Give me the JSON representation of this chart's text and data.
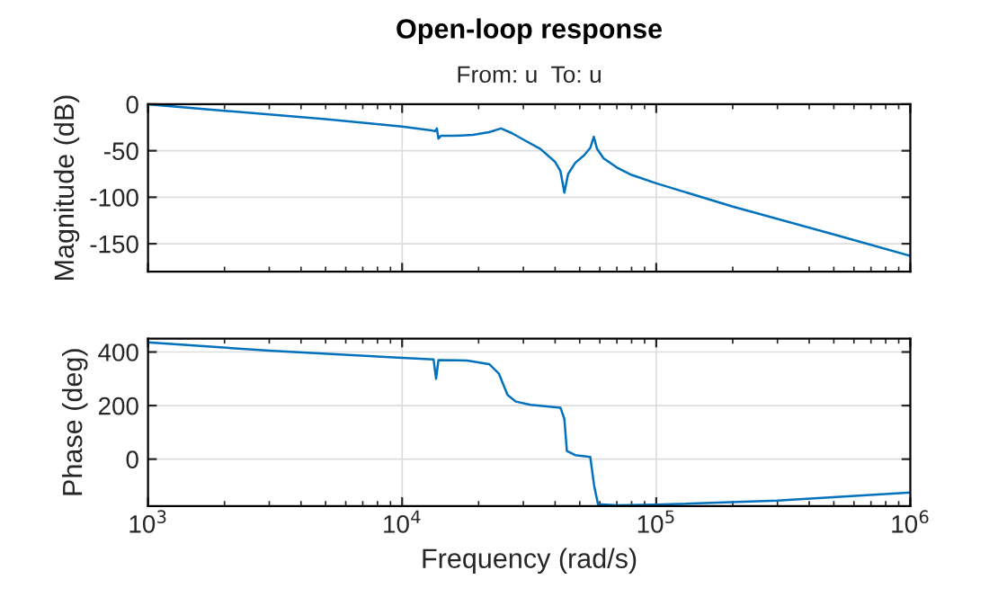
{
  "chart_data": [
    {
      "type": "line",
      "title": "Open-loop response",
      "subtitle": "From: u  To: u",
      "ylabel": "Magnitude (dB)",
      "log": "x",
      "grid": true,
      "tick_labels": "y",
      "legend": false,
      "xlim": [
        1000,
        1000000
      ],
      "xticks": [
        {
          "value": 1000,
          "label": null
        },
        {
          "value": 10000,
          "label": null
        },
        {
          "value": 100000,
          "label": null
        },
        {
          "value": 1000000,
          "label": null
        }
      ],
      "ylim": [
        -180,
        0
      ],
      "yticks": [
        -150,
        -100,
        -50,
        0
      ],
      "series": [
        {
          "color": "#0072bd",
          "x": [
            1000,
            2000,
            5000,
            10000,
            13000,
            13500,
            13700,
            13900,
            14200,
            16000,
            19000,
            22000,
            24500,
            27000,
            30000,
            35000,
            40000,
            42000,
            43500,
            45000,
            48000,
            52000,
            55000,
            56800,
            58500,
            62000,
            70000,
            80000,
            100000,
            200000,
            500000,
            1000000
          ],
          "values": [
            0,
            -7,
            -16,
            -24,
            -28,
            -29,
            -26,
            -37,
            -34,
            -34,
            -33,
            -30,
            -26,
            -31,
            -38,
            -48,
            -62,
            -72,
            -95,
            -75,
            -63,
            -55,
            -47,
            -35,
            -48,
            -58,
            -68,
            -76,
            -85,
            -110,
            -140,
            -163
          ]
        }
      ]
    },
    {
      "type": "line",
      "xlabel": "Frequency (rad/s)",
      "ylabel": "Phase (deg)",
      "log": "x",
      "grid": true,
      "legend": false,
      "xlim": [
        1000,
        1000000
      ],
      "xticks": [
        {
          "value": 1000,
          "label": "10$^{3}$"
        },
        {
          "value": 10000,
          "label": "10$^{4}$"
        },
        {
          "value": 100000,
          "label": "10$^{5}$"
        },
        {
          "value": 1000000,
          "label": "10$^{6}$"
        }
      ],
      "ylim": [
        -175,
        450
      ],
      "yticks": [
        0,
        200,
        400
      ],
      "series": [
        {
          "color": "#0072bd",
          "x": [
            1000,
            3000,
            10000,
            13300,
            13600,
            13900,
            18000,
            22000,
            24000,
            26000,
            28000,
            32000,
            42000,
            43500,
            44500,
            48000,
            55000,
            57000,
            59000,
            70000,
            100000,
            300000,
            1000000
          ],
          "values": [
            436,
            405,
            378,
            372,
            300,
            370,
            368,
            355,
            320,
            240,
            215,
            203,
            192,
            150,
            30,
            15,
            8,
            -100,
            -168,
            -172,
            -170,
            -155,
            -125
          ]
        }
      ]
    }
  ]
}
